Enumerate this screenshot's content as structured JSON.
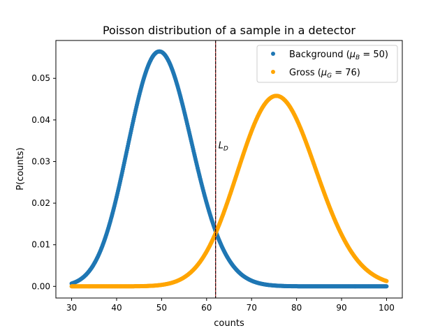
{
  "chart_data": {
    "type": "scatter",
    "title": "Poisson distribution of a sample in a detector",
    "xlabel": "counts",
    "ylabel": "P(counts)",
    "xlim": [
      26.5,
      103.5
    ],
    "ylim": [
      -0.0028,
      0.0591
    ],
    "x_ticks": [
      30,
      40,
      50,
      60,
      70,
      80,
      90,
      100
    ],
    "x_tick_labels": [
      "30",
      "40",
      "50",
      "60",
      "70",
      "80",
      "90",
      "100"
    ],
    "y_ticks": [
      0.0,
      0.01,
      0.02,
      0.03,
      0.04,
      0.05
    ],
    "y_tick_labels": [
      "0.00",
      "0.01",
      "0.02",
      "0.03",
      "0.04",
      "0.05"
    ],
    "grid": false,
    "legend_position": "top-right",
    "x_range": [
      30,
      100
    ],
    "series": [
      {
        "name": "Background",
        "legend_prefix": "Background (",
        "legend_math_symbol": "μ",
        "legend_math_sub": "B",
        "legend_math_rest": " = 50)",
        "color": "#1f77b4",
        "mean": 50,
        "distribution": "poisson"
      },
      {
        "name": "Gross",
        "legend_prefix": "Gross (",
        "legend_math_symbol": "μ",
        "legend_math_sub": "G",
        "legend_math_rest": " = 76)",
        "color": "#ffa500",
        "mean": 76,
        "distribution": "poisson"
      }
    ],
    "vline": {
      "x": 62,
      "color": "#000000",
      "accent_color": "#b22222",
      "label_main": "L",
      "label_sub": "D",
      "label_y": 0.034
    }
  }
}
